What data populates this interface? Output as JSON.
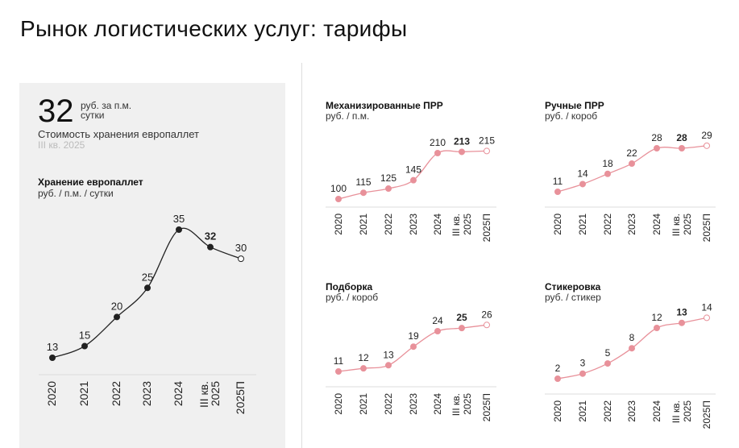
{
  "title": "Рынок логистических услуг: тарифы",
  "kpi": {
    "value": "32",
    "unit_line1": "руб. за п.м.",
    "unit_line2": "сутки",
    "label": "Стоимость хранения европаллет",
    "period": "III кв. 2025"
  },
  "colors": {
    "main": "#222222",
    "accent": "#e8919a",
    "axis": "#dddddd"
  },
  "chart_data": [
    {
      "type": "line",
      "title": "Хранение европаллет",
      "unit": "руб. / п.м. / сутки",
      "categories": [
        "2020",
        "2021",
        "2022",
        "2023",
        "2024",
        "III кв. 2025",
        "2025П"
      ],
      "values": [
        13,
        15,
        20,
        25,
        35,
        32,
        30
      ],
      "highlight_index": 5,
      "forecast_index": 6
    },
    {
      "type": "line",
      "title": "Механизированные ПРР",
      "unit": "руб. / п.м.",
      "categories": [
        "2020",
        "2021",
        "2022",
        "2023",
        "2024",
        "III кв. 2025",
        "2025П"
      ],
      "values": [
        100,
        115,
        125,
        145,
        210,
        213,
        215
      ],
      "highlight_index": 5,
      "forecast_index": 6
    },
    {
      "type": "line",
      "title": "Ручные ПРР",
      "unit": "руб. / короб",
      "categories": [
        "2020",
        "2021",
        "2022",
        "2023",
        "2024",
        "III кв. 2025",
        "2025П"
      ],
      "values": [
        11,
        14,
        18,
        22,
        28,
        28,
        29
      ],
      "highlight_index": 5,
      "forecast_index": 6
    },
    {
      "type": "line",
      "title": "Подборка",
      "unit": "руб. / короб",
      "categories": [
        "2020",
        "2021",
        "2022",
        "2023",
        "2024",
        "III кв. 2025",
        "2025П"
      ],
      "values": [
        11,
        12,
        13,
        19,
        24,
        25,
        26
      ],
      "highlight_index": 5,
      "forecast_index": 6
    },
    {
      "type": "line",
      "title": "Стикеровка",
      "unit": "руб. / стикер",
      "categories": [
        "2020",
        "2021",
        "2022",
        "2023",
        "2024",
        "III кв. 2025",
        "2025П"
      ],
      "values": [
        2,
        3,
        5,
        8,
        12,
        13,
        14
      ],
      "highlight_index": 5,
      "forecast_index": 6
    }
  ]
}
